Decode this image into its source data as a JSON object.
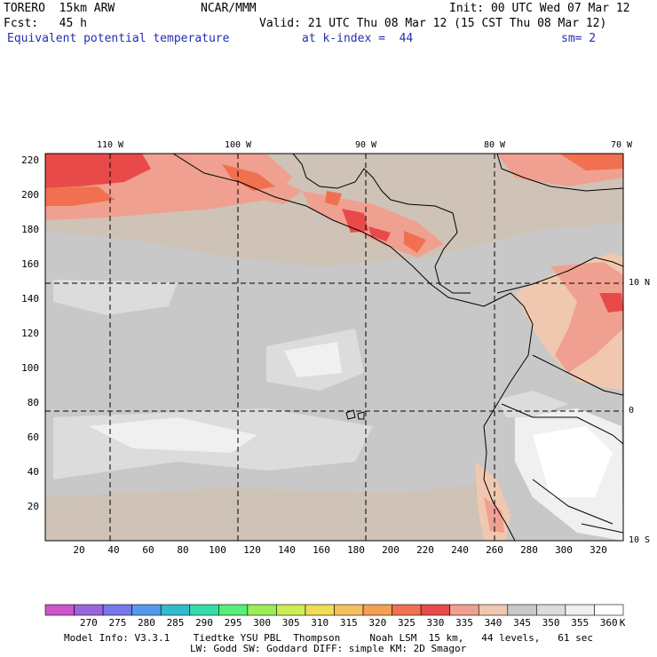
{
  "header": {
    "model": "TORERO  15km ARW",
    "center": "NCAR/MMM",
    "init": "Init: 00 UTC Wed 07 Mar 12",
    "fcst": "Fcst:   45 h",
    "valid": "Valid: 21 UTC Thu 08 Mar 12 (15 CST Thu 08 Mar 12)",
    "field": "Equivalent potential temperature",
    "level": "at k-index =  44",
    "smooth": "sm= 2"
  },
  "map": {
    "x_ticks": [
      "20",
      "40",
      "60",
      "80",
      "100",
      "120",
      "140",
      "160",
      "180",
      "200",
      "220",
      "240",
      "260",
      "280",
      "300",
      "320"
    ],
    "y_ticks": [
      "20",
      "40",
      "60",
      "80",
      "100",
      "120",
      "140",
      "160",
      "180",
      "200",
      "220"
    ],
    "lon_labels": [
      "110 W",
      "100 W",
      "90 W",
      "80 W",
      "70 W"
    ],
    "lat_labels": [
      "10 N",
      "0",
      "10 S"
    ]
  },
  "colorbar": {
    "labels": [
      "270",
      "275",
      "280",
      "285",
      "290",
      "295",
      "300",
      "305",
      "310",
      "315",
      "320",
      "325",
      "330",
      "335",
      "340",
      "345",
      "350",
      "355",
      "360"
    ],
    "unit": "K",
    "colors": [
      "#cc55cc",
      "#9966dd",
      "#7777ee",
      "#5599ee",
      "#33bbcc",
      "#33ddaa",
      "#55ee77",
      "#99ee55",
      "#ccee55",
      "#eedd55",
      "#f5c060",
      "#f5a050",
      "#f07050",
      "#e84a4a",
      "#f0a090",
      "#f0c8b0",
      "#c8c8c8",
      "#dcdcdc",
      "#f0f0f0",
      "#ffffff"
    ]
  },
  "footer": {
    "line1": "Model Info: V3.3.1    Tiedtke YSU PBL  Thompson     Noah LSM  15 km,   44 levels,   61 sec",
    "line2": "LW: Godd SW: Goddard DIFF: simple KM: 2D Smagor"
  }
}
